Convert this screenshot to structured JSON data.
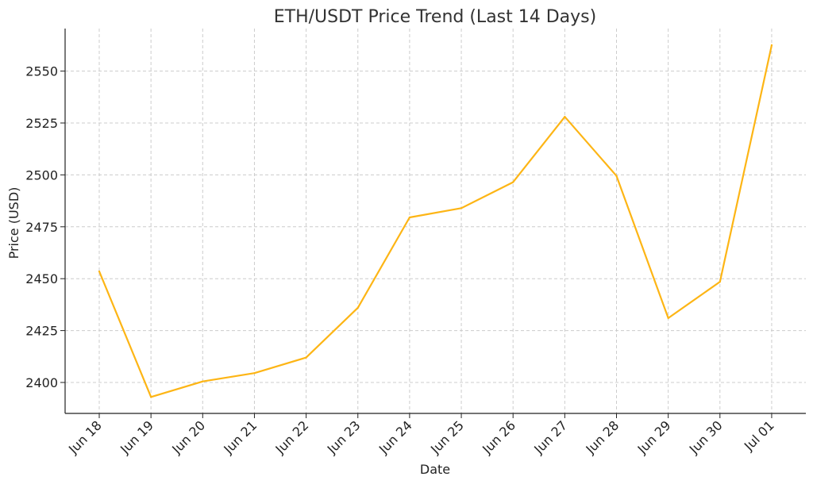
{
  "chart_data": {
    "type": "line",
    "title": "ETH/USDT Price Trend (Last 14 Days)",
    "xlabel": "Date",
    "ylabel": "Price (USD)",
    "categories": [
      "Jun 18",
      "Jun 19",
      "Jun 20",
      "Jun 21",
      "Jun 22",
      "Jun 23",
      "Jun 24",
      "Jun 25",
      "Jun 26",
      "Jun 27",
      "Jun 28",
      "Jun 29",
      "Jun 30",
      "Jul 01"
    ],
    "series": [
      {
        "values": [
          2453.5,
          2393,
          2400.5,
          2404.5,
          2412,
          2436,
          2479.5,
          2484,
          2496.5,
          2528,
          2499.5,
          2431,
          2448.5,
          2562.5
        ],
        "color": "#FDB515"
      }
    ],
    "yticks": [
      2400,
      2425,
      2450,
      2475,
      2500,
      2525,
      2550
    ],
    "ylim": [
      2386,
      2573
    ],
    "grid": true
  }
}
